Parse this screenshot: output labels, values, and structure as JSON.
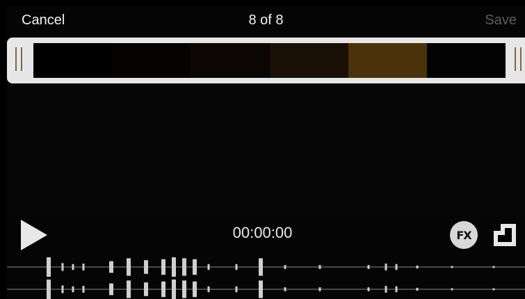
{
  "topbar": {
    "cancel_label": "Cancel",
    "title": "8 of 8",
    "save_label": "Save"
  },
  "trimmer": {
    "thumbnails": [
      "#000000",
      "#050302",
      "#0b0603",
      "#1a1005",
      "#4a3308",
      "#030303"
    ]
  },
  "player": {
    "timecode": "00:00:00",
    "fx_label": "FX"
  },
  "icons": {
    "play": "play-icon",
    "fx": "fx-icon",
    "crop": "crop-icon"
  },
  "colors": {
    "accent_handle": "#7a6a48",
    "save_disabled": "#5d5d5d"
  }
}
